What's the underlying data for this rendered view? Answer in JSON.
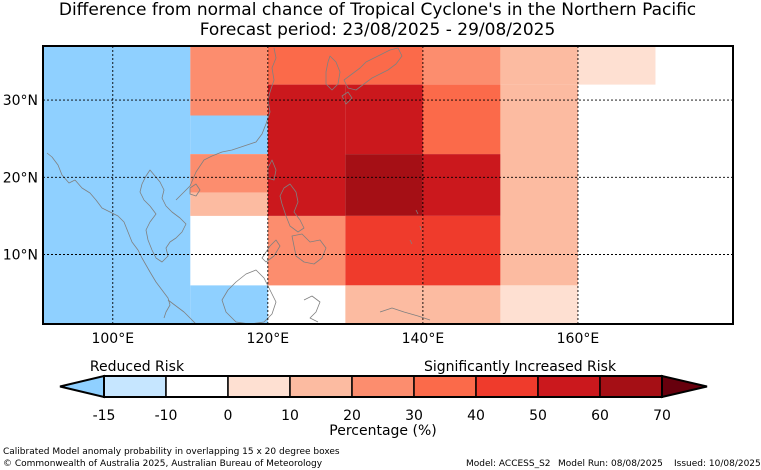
{
  "title_line1": "Difference from normal chance of Tropical Cyclone's in the Northern Pacific",
  "title_line2": "Forecast period: 23/08/2025 - 29/08/2025",
  "map": {
    "lat_labels": [
      "30°N",
      "20°N",
      "10°N"
    ],
    "lon_labels": [
      "100°E",
      "120°E",
      "140°E",
      "160°E"
    ],
    "land_color": "#808080",
    "cells": [
      {
        "lon0": 91,
        "lon1": 110,
        "lat0": 1,
        "lat1": 37,
        "color": "#8fd0ff"
      },
      {
        "lon0": 110,
        "lon1": 120,
        "lat0": 1,
        "lat1": 6,
        "color": "#8fd0ff"
      },
      {
        "lon0": 110,
        "lon1": 120,
        "lat0": 23,
        "lat1": 28,
        "color": "#8fd0ff"
      },
      {
        "lon0": 110,
        "lon1": 120,
        "lat0": 28,
        "lat1": 37,
        "color": "#fc8d6e"
      },
      {
        "lon0": 120,
        "lon1": 140,
        "lat0": 32,
        "lat1": 37,
        "color": "#fb6a4a"
      },
      {
        "lon0": 140,
        "lon1": 150,
        "lat0": 32,
        "lat1": 37,
        "color": "#fc8d6e"
      },
      {
        "lon0": 150,
        "lon1": 160,
        "lat0": 32,
        "lat1": 37,
        "color": "#fcbba1"
      },
      {
        "lon0": 160,
        "lon1": 170,
        "lat0": 32,
        "lat1": 37,
        "color": "#fee0d2"
      },
      {
        "lon0": 110,
        "lon1": 120,
        "lat0": 18,
        "lat1": 23,
        "color": "#fc8d6e"
      },
      {
        "lon0": 110,
        "lon1": 120,
        "lat0": 15,
        "lat1": 18,
        "color": "#fcbba1"
      },
      {
        "lon0": 120,
        "lon1": 130,
        "lat0": 6,
        "lat1": 15,
        "color": "#fc8d6e"
      },
      {
        "lon0": 120,
        "lon1": 130,
        "lat0": 15,
        "lat1": 32,
        "color": "#cb181d"
      },
      {
        "lon0": 130,
        "lon1": 140,
        "lat0": 23,
        "lat1": 32,
        "color": "#cb181d"
      },
      {
        "lon0": 130,
        "lon1": 140,
        "lat0": 15,
        "lat1": 23,
        "color": "#a50f15"
      },
      {
        "lon0": 130,
        "lon1": 140,
        "lat0": 6,
        "lat1": 15,
        "color": "#ef3b2c"
      },
      {
        "lon0": 130,
        "lon1": 150,
        "lat0": 1,
        "lat1": 6,
        "color": "#fcbba1"
      },
      {
        "lon0": 140,
        "lon1": 150,
        "lat0": 23,
        "lat1": 32,
        "color": "#fb6a4a"
      },
      {
        "lon0": 140,
        "lon1": 150,
        "lat0": 15,
        "lat1": 23,
        "color": "#cb181d"
      },
      {
        "lon0": 140,
        "lon1": 150,
        "lat0": 6,
        "lat1": 15,
        "color": "#ef3b2c"
      },
      {
        "lon0": 150,
        "lon1": 160,
        "lat0": 6,
        "lat1": 32,
        "color": "#fcbba1"
      },
      {
        "lon0": 150,
        "lon1": 160,
        "lat0": 1,
        "lat1": 6,
        "color": "#fee0d2"
      }
    ]
  },
  "legend": {
    "reduced_label": "Reduced Risk",
    "increased_label": "Significantly Increased Risk",
    "axis_label": "Percentage (%)",
    "ticks": [
      "-15",
      "-10",
      "0",
      "10",
      "20",
      "30",
      "40",
      "50",
      "60",
      "70"
    ],
    "under_color": "#8fd0ff",
    "over_color": "#67000d",
    "colors": [
      "#c6e6ff",
      "#ffffff",
      "#fee0d2",
      "#fcbba1",
      "#fc8d6e",
      "#fb6a4a",
      "#ef3b2c",
      "#cb181d",
      "#a50f15"
    ]
  },
  "footer": {
    "line1": "Calibrated Model anomaly probability in overlapping 15 x 20 degree boxes",
    "line2": "© Commonwealth of Australia 2025, Australian Bureau of Meteorology",
    "model": "Model: ACCESS_S2",
    "run": "Model Run: 08/08/2025",
    "issued": "Issued: 10/08/2025"
  }
}
